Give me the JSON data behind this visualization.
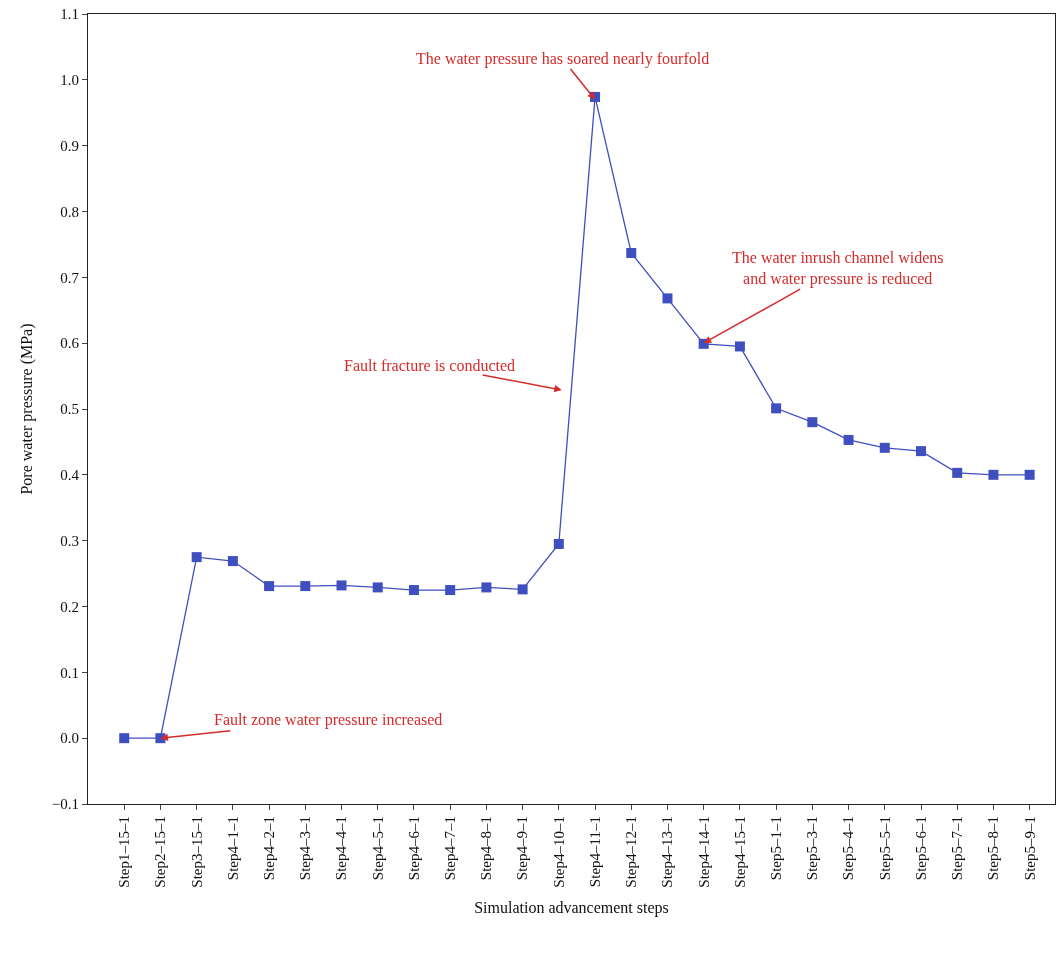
{
  "chart_data": {
    "type": "line",
    "xlabel": "Simulation advancement steps",
    "ylabel": "Pore water pressure (MPa)",
    "categories": [
      "Step1–15–1",
      "Step2–15–1",
      "Step3–15–1",
      "Step4–1–1",
      "Step4–2–1",
      "Step4–3–1",
      "Step4–4–1",
      "Step4–5–1",
      "Step4–6–1",
      "Step4–7–1",
      "Step4–8–1",
      "Step4–9–1",
      "Step4–10–1",
      "Step4–11–1",
      "Step4–12–1",
      "Step4–13–1",
      "Step4–14–1",
      "Step4–15–1",
      "Step5–1–1",
      "Step5–3–1",
      "Step5–4–1",
      "Step5–5–1",
      "Step5–6–1",
      "Step5–7–1",
      "Step5–8–1",
      "Step5–9–1"
    ],
    "series": [
      {
        "color": "#3f4fbf",
        "values": [
          0.0,
          0.0,
          0.275,
          0.269,
          0.231,
          0.231,
          0.232,
          0.229,
          0.225,
          0.225,
          0.229,
          0.226,
          0.295,
          0.974,
          0.737,
          0.668,
          0.599,
          0.595,
          0.501,
          0.48,
          0.453,
          0.441,
          0.436,
          0.403,
          0.4,
          0.4
        ]
      }
    ],
    "ylim": [
      -0.1,
      1.1
    ],
    "yticks": [
      {
        "value": -0.1,
        "label": "−0.1"
      },
      {
        "value": 0,
        "label": "0.0"
      },
      {
        "value": 0.1,
        "label": "0.1"
      },
      {
        "value": 0.2,
        "label": "0.2"
      },
      {
        "value": 0.3,
        "label": "0.3"
      },
      {
        "value": 0.4,
        "label": "0.4"
      },
      {
        "value": 0.5,
        "label": "0.5"
      },
      {
        "value": 0.6,
        "label": "0.6"
      },
      {
        "value": 0.7,
        "label": "0.7"
      },
      {
        "value": 0.8,
        "label": "0.8"
      },
      {
        "value": 0.9,
        "label": "0.9"
      },
      {
        "value": 1.0,
        "label": "1.0"
      },
      {
        "value": 1.1,
        "label": "1.1"
      }
    ],
    "annotations": [
      {
        "text": "Fault zone water pressure increased",
        "x": "Step2–15–1",
        "y": 0.0
      },
      {
        "text": "The water pressure has soared nearly fourfold",
        "x": "Step4–11–1",
        "y": 0.97
      },
      "Fault fracture is conducted",
      {
        "text": "The water inrush channel widens\nand water pressure is reduced",
        "x": "Step4–14–1",
        "y": 0.6
      }
    ],
    "marker": "square",
    "line_style": "solid"
  }
}
